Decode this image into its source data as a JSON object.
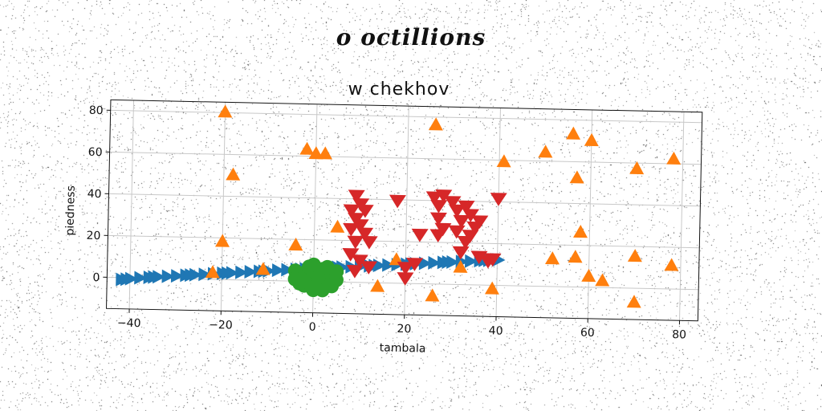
{
  "page": {
    "title": "o octillions"
  },
  "chart_data": {
    "type": "scatter",
    "title": "w  chekhov",
    "xlabel": "tambala",
    "ylabel": "piedness",
    "xlim": [
      -45,
      84
    ],
    "ylim": [
      -15,
      85
    ],
    "xticks": [
      -40,
      -20,
      0,
      20,
      40,
      60,
      80
    ],
    "yticks": [
      0,
      20,
      40,
      60,
      80
    ],
    "grid": true,
    "colors": {
      "blue": "#1f77b4",
      "orange": "#ff7f0e",
      "green": "#2ca02c",
      "red": "#d62728"
    },
    "series": [
      {
        "marker": "triangle-right",
        "color": "#1f77b4",
        "points": [
          [
            -42,
            -1
          ],
          [
            -40,
            -0.5
          ],
          [
            -38,
            0
          ],
          [
            -36,
            0.3
          ],
          [
            -34,
            0.7
          ],
          [
            -32,
            1
          ],
          [
            -30,
            1.3
          ],
          [
            -28,
            1.7
          ],
          [
            -26,
            2
          ],
          [
            -24,
            2.3
          ],
          [
            -22,
            2.7
          ],
          [
            -20,
            3
          ],
          [
            -18,
            3.3
          ],
          [
            -16,
            3.6
          ],
          [
            -14,
            4
          ],
          [
            -12,
            4.3
          ],
          [
            -10,
            4.6
          ],
          [
            -8,
            5
          ],
          [
            -6,
            5.3
          ],
          [
            -4,
            5.6
          ],
          [
            -2,
            5.9
          ],
          [
            0,
            6.2
          ],
          [
            2,
            6.5
          ],
          [
            4,
            6.8
          ],
          [
            6,
            7.1
          ],
          [
            8,
            7.4
          ],
          [
            10,
            7.7
          ],
          [
            12,
            8
          ],
          [
            14,
            8.3
          ],
          [
            16,
            8.6
          ],
          [
            18,
            8.9
          ],
          [
            20,
            9.2
          ],
          [
            22,
            9.5
          ],
          [
            24,
            9.8
          ],
          [
            26,
            10.1
          ],
          [
            28,
            10.4
          ],
          [
            30,
            10.7
          ],
          [
            32,
            11
          ],
          [
            34,
            11.3
          ],
          [
            36,
            11.6
          ],
          [
            38,
            11.9
          ],
          [
            40,
            12.2
          ],
          [
            -41,
            -0.8
          ],
          [
            -35,
            0.5
          ],
          [
            -27,
            1.8
          ],
          [
            -19,
            3.1
          ],
          [
            -11,
            4.4
          ],
          [
            -3,
            5.7
          ],
          [
            5,
            7
          ],
          [
            13,
            8.2
          ],
          [
            21,
            9.3
          ],
          [
            29,
            10.6
          ],
          [
            37,
            11.8
          ]
        ]
      },
      {
        "marker": "triangle-up",
        "color": "#ff7f0e",
        "points": [
          [
            -20,
            80
          ],
          [
            -18,
            50
          ],
          [
            -2,
            63
          ],
          [
            0,
            61
          ],
          [
            2,
            61
          ],
          [
            26,
            76
          ],
          [
            41,
            59
          ],
          [
            50,
            64
          ],
          [
            56,
            73
          ],
          [
            60,
            70
          ],
          [
            57,
            52
          ],
          [
            70,
            57
          ],
          [
            78,
            62
          ],
          [
            -20,
            18
          ],
          [
            -4,
            17
          ],
          [
            5,
            26
          ],
          [
            -22,
            3
          ],
          [
            -11,
            5
          ],
          [
            14,
            -2
          ],
          [
            18,
            11
          ],
          [
            26,
            -6
          ],
          [
            32,
            8
          ],
          [
            39,
            -2
          ],
          [
            52,
            13
          ],
          [
            57,
            14
          ],
          [
            58,
            26
          ],
          [
            60,
            5
          ],
          [
            63,
            3
          ],
          [
            70,
            15
          ],
          [
            70,
            -7
          ],
          [
            78,
            11
          ]
        ]
      },
      {
        "marker": "circle",
        "color": "#2ca02c",
        "points": [
          [
            -3,
            2
          ],
          [
            -2,
            4
          ],
          [
            -1,
            1
          ],
          [
            0,
            3
          ],
          [
            1,
            5
          ],
          [
            2,
            2
          ],
          [
            3,
            0
          ],
          [
            -4,
            5
          ],
          [
            -2,
            -2
          ],
          [
            0,
            -1
          ],
          [
            1,
            0
          ],
          [
            2,
            6
          ],
          [
            3,
            4
          ],
          [
            4,
            3
          ],
          [
            5,
            1
          ],
          [
            -1,
            7
          ],
          [
            0,
            8
          ],
          [
            -3,
            -1
          ],
          [
            4,
            -2
          ],
          [
            2,
            -4
          ],
          [
            -2,
            0
          ],
          [
            1,
            2
          ],
          [
            3,
            7
          ],
          [
            5,
            5
          ],
          [
            -4,
            1
          ],
          [
            0,
            -4
          ]
        ]
      },
      {
        "marker": "triangle-down",
        "color": "#d62728",
        "points": [
          [
            9,
            42
          ],
          [
            10,
            38
          ],
          [
            8,
            35
          ],
          [
            11,
            35
          ],
          [
            9,
            31
          ],
          [
            10,
            28
          ],
          [
            8,
            26
          ],
          [
            11,
            24
          ],
          [
            9,
            20
          ],
          [
            12,
            20
          ],
          [
            8,
            14
          ],
          [
            10,
            11
          ],
          [
            9,
            6
          ],
          [
            12,
            8
          ],
          [
            18,
            40
          ],
          [
            20,
            8
          ],
          [
            20,
            3
          ],
          [
            23,
            24
          ],
          [
            22,
            10
          ],
          [
            26,
            42
          ],
          [
            28,
            43
          ],
          [
            27,
            38
          ],
          [
            27,
            32
          ],
          [
            28,
            27
          ],
          [
            27,
            24
          ],
          [
            30,
            40
          ],
          [
            31,
            36
          ],
          [
            33,
            38
          ],
          [
            32,
            31
          ],
          [
            31,
            26
          ],
          [
            33,
            21
          ],
          [
            32,
            16
          ],
          [
            34,
            34
          ],
          [
            35,
            28
          ],
          [
            34,
            24
          ],
          [
            36,
            31
          ],
          [
            39,
            13
          ],
          [
            40,
            42
          ],
          [
            36,
            14
          ],
          [
            38,
            12
          ]
        ]
      }
    ]
  }
}
